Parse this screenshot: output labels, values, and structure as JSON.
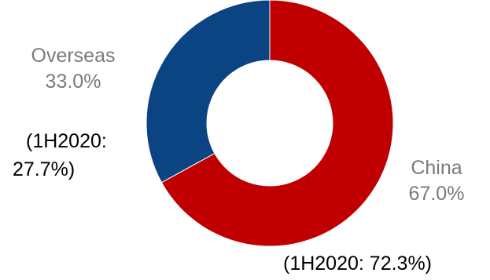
{
  "chart_data": {
    "type": "pie",
    "style": "donut",
    "categories": [
      "China",
      "Overseas"
    ],
    "values": [
      67.0,
      33.0
    ],
    "value_labels": [
      "67.0%",
      "33.0%"
    ],
    "comparison_notes": [
      "(1H2020: 72.3%)",
      "(1H2020: 27.7%)"
    ],
    "overseas_note_lines": [
      "(1H2020:",
      "27.7%)"
    ],
    "colors": [
      "#c00000",
      "#0b4482"
    ],
    "start_angle_deg": 0,
    "direction": "clockwise",
    "title": "",
    "legend": "none"
  }
}
